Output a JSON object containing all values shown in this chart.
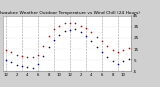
{
  "title": "Milwaukee Weather Outdoor Temperature vs Wind Chill (24 Hours)",
  "title_fontsize": 3.2,
  "bg_color": "#d0d0d0",
  "plot_bg_color": "#ffffff",
  "temp_color": "#cc0000",
  "wind_chill_color": "#0000cc",
  "hours": [
    0,
    1,
    2,
    3,
    4,
    5,
    6,
    7,
    8,
    9,
    10,
    11,
    12,
    13,
    14,
    15,
    16,
    17,
    18,
    19,
    20,
    21,
    22,
    23
  ],
  "temp": [
    14,
    12,
    10,
    9,
    8,
    8,
    10,
    18,
    27,
    33,
    36,
    38,
    38,
    38,
    36,
    34,
    30,
    26,
    22,
    18,
    14,
    12,
    14,
    16
  ],
  "wind_chill": [
    5,
    3,
    1,
    0,
    -1,
    -2,
    2,
    9,
    17,
    23,
    28,
    31,
    32,
    33,
    30,
    27,
    22,
    17,
    12,
    8,
    4,
    2,
    4,
    6
  ],
  "ylim": [
    -5,
    45
  ],
  "yticks": [
    45,
    35,
    25,
    15,
    5,
    -5
  ],
  "ytick_labels": [
    "45",
    "35",
    "25",
    "15",
    "5",
    "-5"
  ],
  "xlim": [
    -0.5,
    23.5
  ],
  "xtick_positions": [
    0,
    2,
    4,
    6,
    8,
    10,
    12,
    14,
    16,
    18,
    20,
    22
  ],
  "xtick_labels": [
    "12",
    "2",
    "4",
    "6",
    "8",
    "10",
    "12",
    "2",
    "4",
    "6",
    "8",
    "10"
  ],
  "grid_x_positions": [
    0,
    3,
    6,
    9,
    12,
    15,
    18,
    21
  ],
  "grid_y_positions": [
    45,
    35,
    25,
    15,
    5,
    -5
  ],
  "marker_size": 1.2,
  "tick_fontsize": 3.0,
  "x_tick_fontsize": 2.8
}
